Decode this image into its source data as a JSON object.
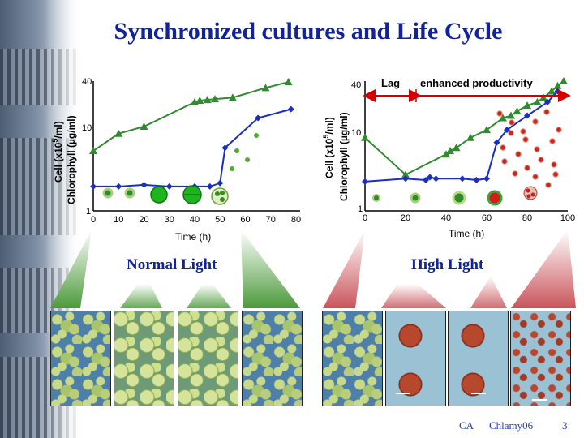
{
  "slide": {
    "title": "Synchronized cultures and Life Cycle",
    "footer_left": "CA",
    "footer_mid": "Chlamy06",
    "page_number": "3"
  },
  "conditions": {
    "normal": "Normal Light",
    "high": "High Light"
  },
  "colors": {
    "title": "#10229c",
    "chlorophyll_series": "#2e8b2e",
    "cell_series": "#1a2fbf",
    "annotation_arrow": "#d40000"
  },
  "chart_data": [
    {
      "type": "line",
      "panel": "normal-light",
      "ylabel_cell": "Cell (x10",
      "ylabel_cell_exp": "5",
      "ylabel_cell_unit": "/ml)",
      "ylabel_chl": "Chlorophyll (µg/ml)",
      "xlabel": "Time (h)",
      "xlim": [
        0,
        80
      ],
      "ylim": [
        1,
        40
      ],
      "yscale": "log",
      "x_ticks": [
        "0",
        "10",
        "20",
        "30",
        "40",
        "50",
        "60",
        "70",
        "80"
      ],
      "y_ticks": [
        "1",
        "10",
        "40"
      ],
      "series": [
        {
          "marker": "triangle",
          "x": [
            0,
            10,
            20,
            40,
            42,
            45,
            48,
            55,
            68,
            77
          ],
          "y": [
            5.5,
            9,
            11,
            22,
            23,
            23.5,
            24,
            25,
            33,
            39
          ]
        },
        {
          "marker": "diamond",
          "x": [
            0,
            10,
            20,
            30,
            40,
            46,
            50,
            52,
            65,
            78
          ],
          "y": [
            2,
            2,
            2.1,
            2,
            2,
            2,
            2.2,
            6,
            14,
            18
          ]
        }
      ]
    },
    {
      "type": "line",
      "panel": "high-light",
      "ylabel_cell": "Cell (x10",
      "ylabel_cell_exp": "5",
      "ylabel_cell_unit": "/ml)",
      "ylabel_chl": "Chlorophyll (µg/ml)",
      "xlabel": "Time (h)",
      "xlim": [
        0,
        100
      ],
      "ylim": [
        1,
        40
      ],
      "yscale": "log",
      "x_ticks": [
        "0",
        "20",
        "40",
        "60",
        "80",
        "100"
      ],
      "y_ticks": [
        "1",
        "10",
        "40"
      ],
      "annotations": [
        "Lag",
        "enhanced productivity"
      ],
      "series": [
        {
          "marker": "triangle",
          "x": [
            0,
            20,
            40,
            42,
            45,
            52,
            60,
            68,
            72,
            75,
            80,
            85,
            88,
            92,
            95,
            98
          ],
          "y": [
            8,
            2.8,
            5,
            5.5,
            6,
            8,
            10,
            14,
            15,
            17,
            20,
            22,
            25,
            30,
            35,
            40
          ]
        },
        {
          "marker": "diamond",
          "x": [
            0,
            20,
            30,
            32,
            35,
            48,
            55,
            60,
            65,
            70,
            80,
            90,
            95
          ],
          "y": [
            2.3,
            2.5,
            2.4,
            2.6,
            2.5,
            2.5,
            2.4,
            2.5,
            7,
            10,
            15,
            22,
            30
          ]
        }
      ]
    }
  ]
}
